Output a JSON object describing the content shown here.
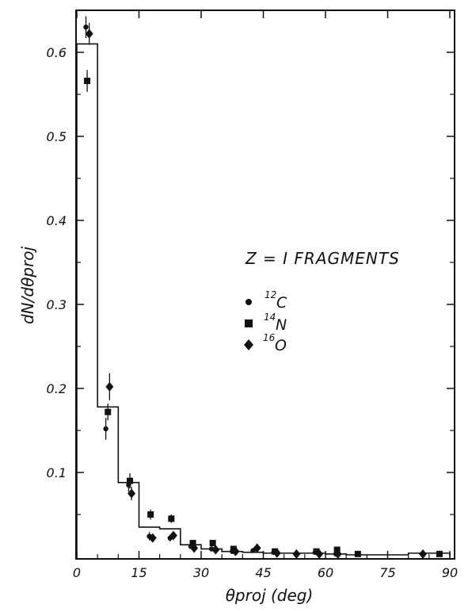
{
  "chart_data": {
    "type": "scatter",
    "title": "",
    "xlabel": "θproj (deg)",
    "ylabel": "dN/dθproj",
    "xlim": [
      0,
      90
    ],
    "ylim": [
      0,
      0.65
    ],
    "x_ticks": [
      0,
      15,
      30,
      45,
      60,
      75,
      90
    ],
    "x_tick_labels": [
      "0",
      "15",
      "30",
      "45",
      "60",
      "75",
      "90"
    ],
    "y_ticks": [
      0.1,
      0.2,
      0.3,
      0.4,
      0.5,
      0.6
    ],
    "y_tick_labels": [
      "0.1",
      "0.2",
      "0.3",
      "0.4",
      "0.5",
      "0.6"
    ],
    "grid": false,
    "legend": {
      "placement": "center-right",
      "title": "Z = I  FRAGMENTS",
      "entries": [
        {
          "mass": "12",
          "element": "C",
          "marker": "circle"
        },
        {
          "mass": "14",
          "element": "N",
          "marker": "square"
        },
        {
          "mass": "16",
          "element": "O",
          "marker": "diamond"
        }
      ]
    },
    "histogram": {
      "edges": [
        0,
        5,
        10,
        15,
        20,
        25,
        30,
        35,
        40,
        45,
        50,
        55,
        60,
        65,
        70,
        75,
        80,
        85,
        90
      ],
      "values": [
        0.61,
        0.178,
        0.088,
        0.035,
        0.033,
        0.014,
        0.009,
        0.006,
        0.005,
        0.004,
        0.004,
        0.004,
        0.003,
        0.002,
        0.002,
        0.002,
        0.004,
        0.004
      ]
    },
    "series": [
      {
        "marker": "circle",
        "points": [
          {
            "x": 2.2,
            "y": 0.63,
            "err": 0.013
          },
          {
            "x": 7.0,
            "y": 0.152,
            "err": 0.013
          },
          {
            "x": 12.5,
            "y": 0.085,
            "err": 0.008
          },
          {
            "x": 17.5,
            "y": 0.024,
            "err": 0.005
          },
          {
            "x": 22.5,
            "y": 0.022,
            "err": 0.004
          },
          {
            "x": 27.5,
            "y": 0.012,
            "err": 0.003
          },
          {
            "x": 32.5,
            "y": 0.009,
            "err": 0.003
          },
          {
            "x": 37.5,
            "y": 0.006,
            "err": 0.002
          },
          {
            "x": 42.5,
            "y": 0.007,
            "err": 0.002
          },
          {
            "x": 47.5,
            "y": 0.005,
            "err": 0.002
          },
          {
            "x": 57.5,
            "y": 0.005,
            "err": 0.002
          },
          {
            "x": 62.5,
            "y": 0.003,
            "err": 0.002
          }
        ]
      },
      {
        "marker": "square",
        "points": [
          {
            "x": 2.5,
            "y": 0.566,
            "err": 0.013
          },
          {
            "x": 7.5,
            "y": 0.172,
            "err": 0.01
          },
          {
            "x": 12.8,
            "y": 0.09,
            "err": 0.009
          },
          {
            "x": 17.8,
            "y": 0.05,
            "err": 0.006
          },
          {
            "x": 22.8,
            "y": 0.045,
            "err": 0.005
          },
          {
            "x": 28.0,
            "y": 0.016,
            "err": 0.003
          },
          {
            "x": 32.8,
            "y": 0.016,
            "err": 0.003
          },
          {
            "x": 37.8,
            "y": 0.009,
            "err": 0.002
          },
          {
            "x": 47.8,
            "y": 0.006,
            "err": 0.002
          },
          {
            "x": 57.8,
            "y": 0.006,
            "err": 0.002
          },
          {
            "x": 62.8,
            "y": 0.008,
            "err": 0.002
          },
          {
            "x": 67.8,
            "y": 0.003,
            "err": 0.001
          },
          {
            "x": 87.5,
            "y": 0.003,
            "err": 0.001
          }
        ]
      },
      {
        "marker": "diamond",
        "points": [
          {
            "x": 3.0,
            "y": 0.622,
            "err": 0.013
          },
          {
            "x": 7.9,
            "y": 0.202,
            "err": 0.016
          },
          {
            "x": 13.2,
            "y": 0.075,
            "err": 0.008
          },
          {
            "x": 18.3,
            "y": 0.022,
            "err": 0.004
          },
          {
            "x": 23.3,
            "y": 0.025,
            "err": 0.004
          },
          {
            "x": 28.3,
            "y": 0.01,
            "err": 0.003
          },
          {
            "x": 33.5,
            "y": 0.008,
            "err": 0.002
          },
          {
            "x": 38.3,
            "y": 0.006,
            "err": 0.002
          },
          {
            "x": 43.5,
            "y": 0.01,
            "err": 0.002
          },
          {
            "x": 48.3,
            "y": 0.004,
            "err": 0.002
          },
          {
            "x": 53.0,
            "y": 0.003,
            "err": 0.001
          },
          {
            "x": 58.5,
            "y": 0.003,
            "err": 0.001
          },
          {
            "x": 63.0,
            "y": 0.003,
            "err": 0.001
          },
          {
            "x": 83.5,
            "y": 0.003,
            "err": 0.001
          }
        ]
      }
    ]
  }
}
